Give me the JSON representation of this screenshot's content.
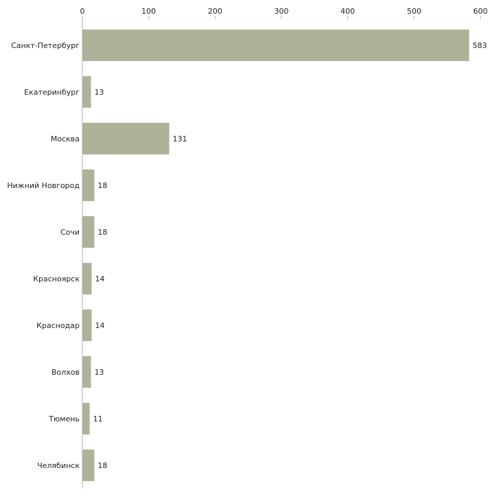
{
  "chart_data": {
    "type": "bar",
    "orientation": "horizontal",
    "categories": [
      "Санкт-Петербург",
      "Екатеринбург",
      "Москва",
      "Нижний Новгород",
      "Сочи",
      "Красноярск",
      "Краснодар",
      "Волхов",
      "Тюмень",
      "Челябинск"
    ],
    "values": [
      583,
      13,
      131,
      18,
      18,
      14,
      14,
      13,
      11,
      18
    ],
    "xlim": [
      0,
      600
    ],
    "xticks": [
      0,
      100,
      200,
      300,
      400,
      500,
      600
    ],
    "title": "",
    "xlabel": "",
    "ylabel": "",
    "grid": false,
    "legend": "none",
    "bar_color": "#adb399"
  }
}
